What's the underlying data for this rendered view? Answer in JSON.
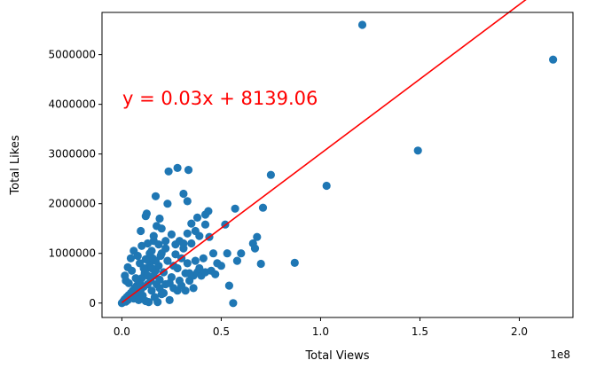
{
  "chart_data": {
    "type": "scatter",
    "title": "",
    "xlabel": "Total Views",
    "ylabel": "Total Likes",
    "x_scale_label": "1e8",
    "xlim": [
      -10000000,
      227000000
    ],
    "ylim": [
      -290000,
      5850000
    ],
    "x_ticks": [
      {
        "value": 0,
        "label": "0.0"
      },
      {
        "value": 50000000,
        "label": "0.5"
      },
      {
        "value": 100000000,
        "label": "1.0"
      },
      {
        "value": 150000000,
        "label": "1.5"
      },
      {
        "value": 200000000,
        "label": "2.0"
      }
    ],
    "y_ticks": [
      {
        "value": 0,
        "label": "0"
      },
      {
        "value": 1000000,
        "label": "1000000"
      },
      {
        "value": 2000000,
        "label": "2000000"
      },
      {
        "value": 3000000,
        "label": "3000000"
      },
      {
        "value": 4000000,
        "label": "4000000"
      },
      {
        "value": 5000000,
        "label": "5000000"
      }
    ],
    "grid": false,
    "colors": {
      "points": "#1f77b4",
      "regression": "#ff0000",
      "axes": "#000000"
    },
    "regression": {
      "slope": 0.03,
      "intercept": 8139.06,
      "x_range": [
        0,
        217000000
      ],
      "label": "y = 0.03x + 8139.06"
    },
    "series": [
      {
        "points": [
          [
            0,
            0
          ],
          [
            500000,
            20000
          ],
          [
            1000000,
            50000
          ],
          [
            1500000,
            80000
          ],
          [
            2000000,
            30000
          ],
          [
            2500000,
            120000
          ],
          [
            3000000,
            60000
          ],
          [
            3500000,
            160000
          ],
          [
            4000000,
            100000
          ],
          [
            4500000,
            200000
          ],
          [
            5000000,
            140000
          ],
          [
            5500000,
            250000
          ],
          [
            6000000,
            90000
          ],
          [
            6500000,
            300000
          ],
          [
            7000000,
            180000
          ],
          [
            7500000,
            350000
          ],
          [
            8000000,
            220000
          ],
          [
            8500000,
            60000
          ],
          [
            9000000,
            420000
          ],
          [
            9500000,
            270000
          ],
          [
            10000000,
            500000
          ],
          [
            10500000,
            150000
          ],
          [
            11000000,
            330000
          ],
          [
            11500000,
            600000
          ],
          [
            12000000,
            40000
          ],
          [
            12500000,
            700000
          ],
          [
            13000000,
            380000
          ],
          [
            13500000,
            20000
          ],
          [
            14000000,
            800000
          ],
          [
            14500000,
            450000
          ],
          [
            15000000,
            250000
          ],
          [
            15500000,
            900000
          ],
          [
            16000000,
            550000
          ],
          [
            16500000,
            120000
          ],
          [
            17000000,
            650000
          ],
          [
            17500000,
            380000
          ],
          [
            18000000,
            20000
          ],
          [
            18500000,
            750000
          ],
          [
            19000000,
            470000
          ],
          [
            19500000,
            950000
          ],
          [
            20000000,
            180000
          ],
          [
            21000000,
            620000
          ],
          [
            22000000,
            380000
          ],
          [
            23000000,
            850000
          ],
          [
            24000000,
            60000
          ],
          [
            25000000,
            520000
          ],
          [
            26000000,
            300000
          ],
          [
            27000000,
            980000
          ],
          [
            28000000,
            700000
          ],
          [
            29000000,
            450000
          ],
          [
            30000000,
            900000
          ],
          [
            31000000,
            1100000
          ],
          [
            32000000,
            600000
          ],
          [
            33000000,
            800000
          ],
          [
            34000000,
            450000
          ],
          [
            35000000,
            1200000
          ],
          [
            36000000,
            550000
          ],
          [
            37000000,
            850000
          ],
          [
            38000000,
            620000
          ],
          [
            39000000,
            700000
          ],
          [
            40000000,
            550000
          ],
          [
            41000000,
            900000
          ],
          [
            42000000,
            620000
          ],
          [
            45000000,
            650000
          ],
          [
            47000000,
            580000
          ],
          [
            50000000,
            750000
          ],
          [
            1500000,
            550000
          ],
          [
            3000000,
            720000
          ],
          [
            4500000,
            900000
          ],
          [
            6000000,
            1050000
          ],
          [
            8000000,
            950000
          ],
          [
            10000000,
            1150000
          ],
          [
            12000000,
            880000
          ],
          [
            14000000,
            1000000
          ],
          [
            16000000,
            1250000
          ],
          [
            20000000,
            1000000
          ],
          [
            22000000,
            1100000
          ],
          [
            2000000,
            450000
          ],
          [
            3500000,
            400000
          ],
          [
            5000000,
            650000
          ],
          [
            7000000,
            500000
          ],
          [
            9000000,
            800000
          ],
          [
            11000000,
            700000
          ],
          [
            13000000,
            550000
          ],
          [
            15000000,
            700000
          ],
          [
            17000000,
            850000
          ],
          [
            19000000,
            300000
          ],
          [
            21000000,
            200000
          ],
          [
            24000000,
            400000
          ],
          [
            26000000,
            750000
          ],
          [
            28000000,
            250000
          ],
          [
            30000000,
            350000
          ],
          [
            32000000,
            250000
          ],
          [
            34000000,
            600000
          ],
          [
            36000000,
            300000
          ],
          [
            9500000,
            1450000
          ],
          [
            13000000,
            1200000
          ],
          [
            15000000,
            1050000
          ],
          [
            16000000,
            1350000
          ],
          [
            17500000,
            1550000
          ],
          [
            18500000,
            1180000
          ],
          [
            20000000,
            1500000
          ],
          [
            22000000,
            1250000
          ],
          [
            25000000,
            1380000
          ],
          [
            27000000,
            1180000
          ],
          [
            29000000,
            1250000
          ],
          [
            31000000,
            1200000
          ],
          [
            33000000,
            1400000
          ],
          [
            35000000,
            1600000
          ],
          [
            37000000,
            1450000
          ],
          [
            39000000,
            1350000
          ],
          [
            42000000,
            1580000
          ],
          [
            12000000,
            1750000
          ],
          [
            12500000,
            1800000
          ],
          [
            17000000,
            2150000
          ],
          [
            19000000,
            1700000
          ],
          [
            23000000,
            2000000
          ],
          [
            23500000,
            2650000
          ],
          [
            28000000,
            2720000
          ],
          [
            31000000,
            2200000
          ],
          [
            33000000,
            2050000
          ],
          [
            33500000,
            2680000
          ],
          [
            38000000,
            1720000
          ],
          [
            42000000,
            1780000
          ],
          [
            43500000,
            1850000
          ],
          [
            44000000,
            1330000
          ],
          [
            46000000,
            1000000
          ],
          [
            48000000,
            800000
          ],
          [
            52000000,
            1580000
          ],
          [
            53000000,
            1000000
          ],
          [
            54000000,
            350000
          ],
          [
            56000000,
            0
          ],
          [
            57000000,
            1900000
          ],
          [
            58000000,
            850000
          ],
          [
            60000000,
            1000000
          ],
          [
            66000000,
            1200000
          ],
          [
            67000000,
            1100000
          ],
          [
            68000000,
            1330000
          ],
          [
            70000000,
            790000
          ],
          [
            71000000,
            1920000
          ],
          [
            75000000,
            2580000
          ],
          [
            87000000,
            810000
          ],
          [
            103000000,
            2360000
          ],
          [
            121000000,
            5600000
          ],
          [
            149000000,
            3070000
          ],
          [
            217000000,
            4900000
          ]
        ]
      }
    ]
  }
}
